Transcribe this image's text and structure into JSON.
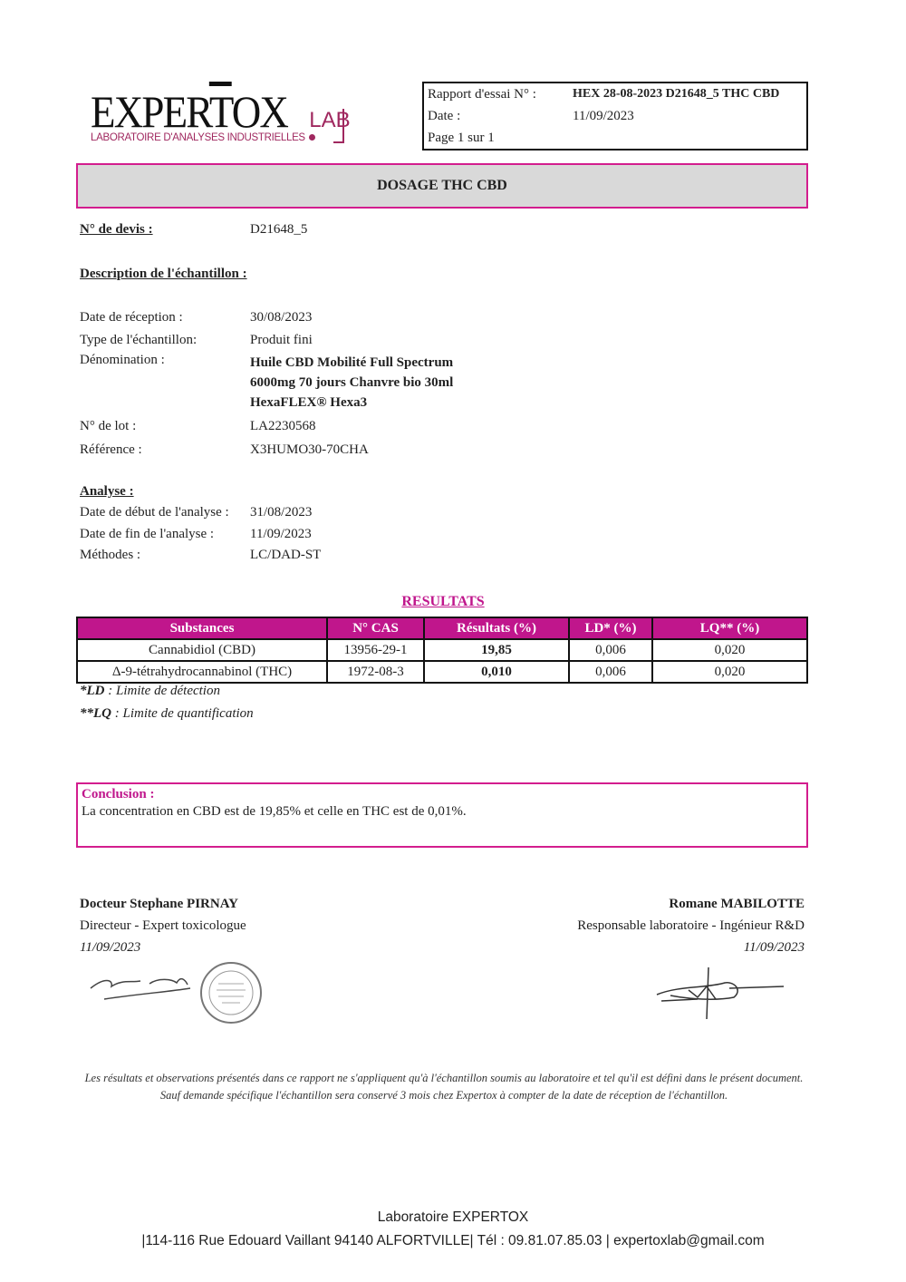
{
  "logo": {
    "main_a": "EXPER",
    "main_t": "T",
    "main_b": "OX",
    "lab": "LAB",
    "subtitle": "LABORATOIRE D'ANALYSES INDUSTRIELLES",
    "accent_color": "#a0285f"
  },
  "report": {
    "rows": [
      {
        "label": "Rapport d'essai N° :",
        "value": "HEX 28-08-2023 D21648_5 THC CBD"
      },
      {
        "label": "Date :",
        "value": "11/09/2023"
      },
      {
        "label": "Page 1 sur 1",
        "value": ""
      }
    ]
  },
  "title": "DOSAGE THC CBD",
  "devis": {
    "label": "N° de devis :",
    "value": "D21648_5"
  },
  "description": {
    "heading": "Description de l'échantillon :",
    "reception_label": "Date de réception :",
    "reception": "30/08/2023",
    "type_label": "Type de l'échantillon:",
    "type": "Produit fini",
    "denomination_label": "Dénomination :",
    "denomination_lines": [
      "Huile CBD Mobilité Full Spectrum",
      "6000mg 70 jours Chanvre bio 30ml",
      "HexaFLEX® Hexa3"
    ],
    "lot_label": "N° de lot :",
    "lot": "LA2230568",
    "reference_label": "Référence :",
    "reference": "X3HUMO30-70CHA"
  },
  "analyse": {
    "heading": "Analyse :",
    "start_label": "Date de début de l'analyse :",
    "start": "31/08/2023",
    "end_label": "Date de fin de l'analyse :",
    "end": "11/09/2023",
    "methods_label": "Méthodes :",
    "methods": "LC/DAD-ST"
  },
  "results": {
    "title": "RESULTATS",
    "headers": [
      "Substances",
      "N° CAS",
      "Résultats (%)",
      "LD* (%)",
      "LQ** (%)"
    ],
    "rows": [
      [
        "Cannabidiol (CBD)",
        "13956-29-1",
        "19,85",
        "0,006",
        "0,020"
      ],
      [
        "Δ-9-tétrahydrocannabinol (THC)",
        "1972-08-3",
        "0,010",
        "0,006",
        "0,020"
      ]
    ],
    "notes": [
      {
        "key": "*LD",
        "text": " : Limite de détection"
      },
      {
        "key": "**LQ",
        "text": " : Limite de quantification"
      }
    ],
    "header_color": "#c0168c"
  },
  "conclusion": {
    "heading": "Conclusion :",
    "text": "La concentration en CBD est de 19,85% et celle en THC est de 0,01%."
  },
  "signatures": {
    "left": {
      "name": "Docteur Stephane PIRNAY",
      "role": "Directeur - Expert toxicologue",
      "date": "11/09/2023"
    },
    "right": {
      "name": "Romane MABILOTTE",
      "role": "Responsable laboratoire - Ingénieur R&D",
      "date": "11/09/2023"
    }
  },
  "disclaimer": "Les résultats et observations présentés dans ce rapport ne s'appliquent qu'à l'échantillon soumis au laboratoire et tel qu'il est défini dans le présent document. Sauf demande spécifique l'échantillon sera conservé 3 mois chez Expertox à compter de la date de réception de l'échantillon.",
  "footer": {
    "line1": "Laboratoire EXPERTOX",
    "line2": "|114-116 Rue Edouard Vaillant 94140 ALFORTVILLE| Tél : 09.81.07.85.03 | expertoxlab@gmail.com"
  }
}
